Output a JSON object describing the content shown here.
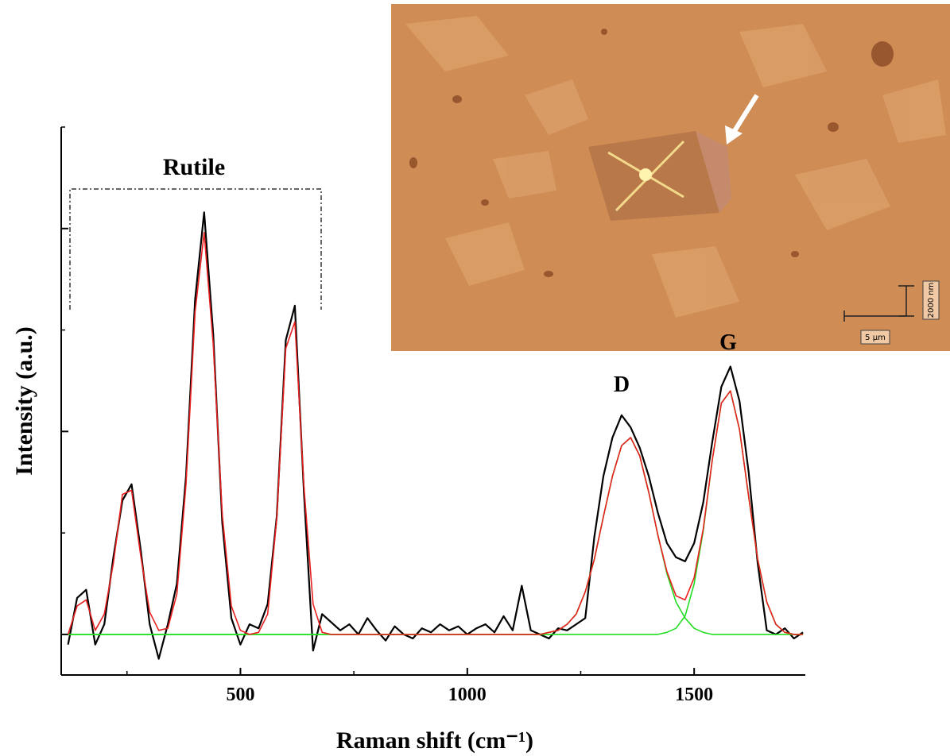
{
  "chart_data": {
    "type": "line",
    "xlabel": "Raman shift (cm⁻¹)",
    "ylabel": "Intensity (a.u.)",
    "annotations": [
      "Rutile",
      "D",
      "G"
    ],
    "xlim": [
      105,
      1745
    ],
    "xticks": [
      500,
      1000,
      1500
    ],
    "xticks_minor": [
      250,
      750,
      1250
    ],
    "ylim": [
      -0.2,
      2.5
    ],
    "yticks": [
      0,
      1,
      2
    ],
    "yticks_minor": [
      0.5,
      1.5,
      2.5
    ],
    "ytick_labels": false,
    "x": [
      120,
      140,
      160,
      180,
      200,
      220,
      240,
      260,
      280,
      300,
      320,
      340,
      360,
      380,
      400,
      420,
      440,
      460,
      480,
      500,
      520,
      540,
      560,
      580,
      600,
      620,
      640,
      660,
      680,
      700,
      720,
      740,
      760,
      780,
      800,
      820,
      840,
      860,
      880,
      900,
      920,
      940,
      960,
      980,
      1000,
      1020,
      1040,
      1060,
      1080,
      1100,
      1120,
      1140,
      1160,
      1180,
      1200,
      1220,
      1240,
      1260,
      1280,
      1300,
      1320,
      1340,
      1360,
      1380,
      1400,
      1420,
      1440,
      1460,
      1480,
      1500,
      1520,
      1540,
      1560,
      1580,
      1600,
      1620,
      1640,
      1660,
      1680,
      1700,
      1720,
      1740
    ],
    "series": [
      {
        "color": "#000000",
        "values": [
          -0.05,
          0.18,
          0.22,
          -0.05,
          0.05,
          0.38,
          0.66,
          0.74,
          0.42,
          0.05,
          -0.12,
          0.05,
          0.25,
          0.78,
          1.65,
          2.08,
          1.48,
          0.55,
          0.08,
          -0.05,
          0.05,
          0.03,
          0.15,
          0.58,
          1.45,
          1.62,
          0.7,
          -0.08,
          0.1,
          0.06,
          0.02,
          0.05,
          0.0,
          0.08,
          0.02,
          -0.03,
          0.04,
          0.0,
          -0.02,
          0.03,
          0.01,
          0.05,
          0.02,
          0.04,
          0.0,
          0.03,
          0.05,
          0.01,
          0.09,
          0.02,
          0.24,
          0.02,
          0.0,
          -0.02,
          0.03,
          0.02,
          0.05,
          0.08,
          0.48,
          0.78,
          0.97,
          1.08,
          1.02,
          0.92,
          0.78,
          0.6,
          0.45,
          0.38,
          0.36,
          0.45,
          0.65,
          0.95,
          1.22,
          1.32,
          1.15,
          0.8,
          0.35,
          0.02,
          0.0,
          0.03,
          -0.02,
          0.01
        ]
      },
      {
        "color": "#22dd22",
        "values": [
          0,
          0,
          0,
          0,
          0,
          0,
          0,
          0,
          0,
          0,
          0,
          0,
          0,
          0,
          0,
          0,
          0,
          0,
          0,
          0,
          0,
          0,
          0,
          0,
          0,
          0,
          0,
          0,
          0,
          0,
          0,
          0,
          0,
          0,
          0,
          0,
          0,
          0,
          0,
          0,
          0,
          0,
          0,
          0,
          0,
          0,
          0,
          0,
          0,
          0,
          0,
          0,
          0,
          0.01,
          0.02,
          0.05,
          0.1,
          0.21,
          0.37,
          0.58,
          0.78,
          0.93,
          0.97,
          0.88,
          0.7,
          0.49,
          0.3,
          0.16,
          0.08,
          0.03,
          0.01,
          0,
          0,
          0,
          0,
          0,
          0,
          0,
          0,
          0,
          0,
          0
        ]
      },
      {
        "color": "#22dd22",
        "values": [
          0,
          0,
          0,
          0,
          0,
          0,
          0,
          0,
          0,
          0,
          0,
          0,
          0,
          0,
          0,
          0,
          0,
          0,
          0,
          0,
          0,
          0,
          0,
          0,
          0,
          0,
          0,
          0,
          0,
          0,
          0,
          0,
          0,
          0,
          0,
          0,
          0,
          0,
          0,
          0,
          0,
          0,
          0,
          0,
          0,
          0,
          0,
          0,
          0,
          0,
          0,
          0,
          0,
          0,
          0,
          0,
          0,
          0,
          0,
          0,
          0,
          0,
          0,
          0,
          0,
          0,
          0.01,
          0.03,
          0.09,
          0.25,
          0.51,
          0.86,
          1.14,
          1.2,
          1.01,
          0.68,
          0.37,
          0.16,
          0.05,
          0.01,
          0,
          0
        ]
      },
      {
        "color": "#e8201f",
        "values": [
          0,
          0.14,
          0.17,
          0.02,
          0.1,
          0.35,
          0.69,
          0.71,
          0.39,
          0.11,
          0.02,
          0.03,
          0.2,
          0.74,
          1.59,
          1.98,
          1.43,
          0.59,
          0.14,
          0.02,
          0,
          0.01,
          0.1,
          0.57,
          1.41,
          1.54,
          0.73,
          0.15,
          0.01,
          0,
          0,
          0,
          0,
          0,
          0,
          0,
          0,
          0,
          0,
          0,
          0,
          0,
          0,
          0,
          0,
          0,
          0,
          0,
          0,
          0,
          0,
          0,
          0,
          0.01,
          0.02,
          0.05,
          0.1,
          0.21,
          0.37,
          0.58,
          0.78,
          0.93,
          0.97,
          0.88,
          0.7,
          0.49,
          0.31,
          0.19,
          0.17,
          0.28,
          0.52,
          0.86,
          1.14,
          1.2,
          1.01,
          0.68,
          0.37,
          0.16,
          0.05,
          0.01,
          0,
          0
        ]
      }
    ]
  },
  "inset": {
    "scale_height": "2000 nm",
    "scale_width": "5 µm"
  }
}
